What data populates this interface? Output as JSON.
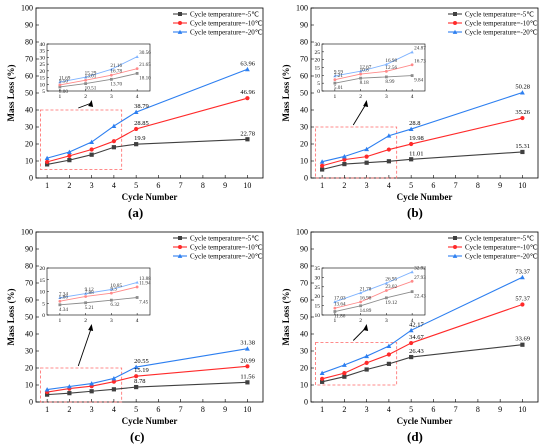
{
  "series_names": [
    "Cycle temperature=-5℃",
    "Cycle temperature=-10℃",
    "Cycle temperature=-20℃"
  ],
  "colors": {
    "s5": "#404040",
    "s10": "#ff2a2a",
    "s20": "#2d7ff0",
    "inset_s5": "#8c8c8c",
    "inset_s10": "#ff8a8a",
    "inset_s20": "#7fb3ff",
    "box": "#ff6666"
  },
  "chart_data": [
    {
      "panel_label": "(a)",
      "type": "line",
      "xlabel": "Cycle Number",
      "ylabel": "Mass Loss (%)",
      "x": [
        1,
        2,
        3,
        4,
        5,
        10
      ],
      "xticks": [
        1,
        2,
        3,
        4,
        5,
        6,
        7,
        8,
        9,
        10
      ],
      "ylim": [
        0,
        100
      ],
      "yticks": [
        0,
        10,
        20,
        30,
        40,
        50,
        60,
        70,
        80,
        90,
        100
      ],
      "series": [
        {
          "name": "Cycle temperature=-5℃",
          "values": [
            8.0,
            10.51,
            13.7,
            18.1,
            19.9,
            22.78
          ]
        },
        {
          "name": "Cycle temperature=-10℃",
          "values": [
            9.5,
            13.01,
            16.78,
            21.65,
            28.85,
            46.96
          ]
        },
        {
          "name": "Cycle temperature=-20℃",
          "values": [
            11.69,
            15.29,
            21.16,
            30.56,
            38.79,
            63.96
          ]
        }
      ],
      "labels": [
        {
          "x": 5,
          "y": 19.9,
          "text": "19.9",
          "s": 0
        },
        {
          "x": 10,
          "y": 22.78,
          "text": "22.78",
          "s": 0
        },
        {
          "x": 5,
          "y": 28.85,
          "text": "28.85",
          "s": 1
        },
        {
          "x": 10,
          "y": 46.96,
          "text": "46.96",
          "s": 1
        },
        {
          "x": 5,
          "y": 38.79,
          "text": "38.79",
          "s": 2
        },
        {
          "x": 10,
          "y": 63.96,
          "text": "63.96",
          "s": 2
        }
      ],
      "inset": {
        "ylim": [
          5,
          40
        ],
        "yticks": [
          5,
          10,
          15,
          20,
          25,
          30,
          35,
          40
        ],
        "labels": [
          {
            "x": 1,
            "y": 8.0,
            "text": "8.00",
            "s": 0
          },
          {
            "x": 2,
            "y": 10.51,
            "text": "10.51",
            "s": 0
          },
          {
            "x": 3,
            "y": 13.7,
            "text": "13.70",
            "s": 0
          },
          {
            "x": 4,
            "y": 18.1,
            "text": "18.10",
            "s": 0
          },
          {
            "x": 1,
            "y": 9.5,
            "text": "9.50",
            "s": 1
          },
          {
            "x": 2,
            "y": 13.01,
            "text": "13.01",
            "s": 1
          },
          {
            "x": 3,
            "y": 16.78,
            "text": "16.78",
            "s": 1
          },
          {
            "x": 4,
            "y": 21.65,
            "text": "21.65",
            "s": 1
          },
          {
            "x": 1,
            "y": 11.69,
            "text": "11.69",
            "s": 2
          },
          {
            "x": 2,
            "y": 15.29,
            "text": "15.29",
            "s": 2
          },
          {
            "x": 3,
            "y": 21.16,
            "text": "21.16",
            "s": 2
          },
          {
            "x": 4,
            "y": 30.56,
            "text": "30.56",
            "s": 2
          }
        ]
      }
    },
    {
      "panel_label": "(b)",
      "type": "line",
      "xlabel": "Cycle Number",
      "ylabel": "Mass Loss (%)",
      "x": [
        1,
        2,
        3,
        4,
        5,
        10
      ],
      "xticks": [
        1,
        2,
        3,
        4,
        5,
        6,
        7,
        8,
        9,
        10
      ],
      "ylim": [
        0,
        100
      ],
      "yticks": [
        0,
        10,
        20,
        30,
        40,
        50,
        60,
        70,
        80,
        90,
        100
      ],
      "series": [
        {
          "name": "Cycle temperature=-5℃",
          "values": [
            5.01,
            8.18,
            8.99,
            9.84,
            11.01,
            15.31
          ]
        },
        {
          "name": "Cycle temperature=-10℃",
          "values": [
            7.21,
            10.8,
            12.56,
            16.73,
            19.98,
            35.26
          ]
        },
        {
          "name": "Cycle temperature=-20℃",
          "values": [
            9.59,
            12.67,
            16.98,
            24.87,
            28.8,
            50.28
          ]
        }
      ],
      "labels": [
        {
          "x": 5,
          "y": 11.01,
          "text": "11.01",
          "s": 0
        },
        {
          "x": 10,
          "y": 15.31,
          "text": "15.31",
          "s": 0
        },
        {
          "x": 5,
          "y": 19.98,
          "text": "19.98",
          "s": 1
        },
        {
          "x": 10,
          "y": 35.26,
          "text": "35.26",
          "s": 1
        },
        {
          "x": 5,
          "y": 28.8,
          "text": "28.8",
          "s": 2
        },
        {
          "x": 10,
          "y": 50.28,
          "text": "50.28",
          "s": 2
        }
      ],
      "inset": {
        "ylim": [
          0,
          30
        ],
        "yticks": [
          0,
          5,
          10,
          15,
          20,
          25,
          30
        ],
        "labels": [
          {
            "x": 1,
            "y": 5.01,
            "text": "5.01",
            "s": 0
          },
          {
            "x": 2,
            "y": 8.18,
            "text": "8.18",
            "s": 0
          },
          {
            "x": 3,
            "y": 8.99,
            "text": "8.99",
            "s": 0
          },
          {
            "x": 4,
            "y": 9.84,
            "text": "9.84",
            "s": 0
          },
          {
            "x": 1,
            "y": 7.21,
            "text": "7.21",
            "s": 1
          },
          {
            "x": 2,
            "y": 10.8,
            "text": "10.8",
            "s": 1
          },
          {
            "x": 3,
            "y": 12.56,
            "text": "12.56",
            "s": 1
          },
          {
            "x": 4,
            "y": 16.73,
            "text": "16.73",
            "s": 1
          },
          {
            "x": 1,
            "y": 9.59,
            "text": "9.59",
            "s": 2
          },
          {
            "x": 2,
            "y": 12.67,
            "text": "12.67",
            "s": 2
          },
          {
            "x": 3,
            "y": 16.98,
            "text": "16.98",
            "s": 2
          },
          {
            "x": 4,
            "y": 24.87,
            "text": "24.87",
            "s": 2
          }
        ]
      }
    },
    {
      "panel_label": "(c)",
      "type": "line",
      "xlabel": "Cycle Number",
      "ylabel": "Mass Loss (%)",
      "x": [
        1,
        2,
        3,
        4,
        5,
        10
      ],
      "xticks": [
        1,
        2,
        3,
        4,
        5,
        6,
        7,
        8,
        9,
        10
      ],
      "ylim": [
        0,
        100
      ],
      "yticks": [
        0,
        10,
        20,
        30,
        40,
        50,
        60,
        70,
        80,
        90,
        100
      ],
      "series": [
        {
          "name": "Cycle temperature=-5℃",
          "values": [
            4.34,
            5.21,
            6.32,
            7.45,
            8.78,
            11.56
          ]
        },
        {
          "name": "Cycle temperature=-10℃",
          "values": [
            5.86,
            7.88,
            9.3,
            11.94,
            15.19,
            20.99
          ]
        },
        {
          "name": "Cycle temperature=-20℃",
          "values": [
            7.34,
            9.12,
            10.85,
            13.88,
            20.55,
            31.38
          ]
        }
      ],
      "labels": [
        {
          "x": 5,
          "y": 8.78,
          "text": "8.78",
          "s": 0
        },
        {
          "x": 10,
          "y": 11.56,
          "text": "11.56",
          "s": 0
        },
        {
          "x": 5,
          "y": 15.19,
          "text": "15.19",
          "s": 1
        },
        {
          "x": 10,
          "y": 20.99,
          "text": "20.99",
          "s": 1
        },
        {
          "x": 5,
          "y": 20.55,
          "text": "20.55",
          "s": 2
        },
        {
          "x": 10,
          "y": 31.38,
          "text": "31.38",
          "s": 2
        }
      ],
      "inset": {
        "ylim": [
          0,
          20
        ],
        "yticks": [
          0,
          5,
          10,
          15,
          20
        ],
        "labels": [
          {
            "x": 1,
            "y": 4.34,
            "text": "4.34",
            "s": 0
          },
          {
            "x": 2,
            "y": 5.21,
            "text": "5.21",
            "s": 0
          },
          {
            "x": 3,
            "y": 6.32,
            "text": "6.32",
            "s": 0
          },
          {
            "x": 4,
            "y": 7.45,
            "text": "7.45",
            "s": 0
          },
          {
            "x": 1,
            "y": 5.86,
            "text": "5.86",
            "s": 1
          },
          {
            "x": 2,
            "y": 7.88,
            "text": "7.88",
            "s": 1
          },
          {
            "x": 3,
            "y": 9.3,
            "text": "9.3",
            "s": 1
          },
          {
            "x": 4,
            "y": 11.94,
            "text": "11.94",
            "s": 1
          },
          {
            "x": 1,
            "y": 7.34,
            "text": "7.34",
            "s": 2
          },
          {
            "x": 2,
            "y": 9.12,
            "text": "9.12",
            "s": 2
          },
          {
            "x": 3,
            "y": 10.85,
            "text": "10.85",
            "s": 2
          },
          {
            "x": 4,
            "y": 13.88,
            "text": "13.88",
            "s": 2
          }
        ]
      }
    },
    {
      "panel_label": "(d)",
      "type": "line",
      "xlabel": "Cycle Number",
      "ylabel": "Mass Loss (%)",
      "x": [
        1,
        2,
        3,
        4,
        5,
        10
      ],
      "xticks": [
        1,
        2,
        3,
        4,
        5,
        6,
        7,
        8,
        9,
        10
      ],
      "ylim": [
        0,
        100
      ],
      "yticks": [
        0,
        10,
        20,
        30,
        40,
        50,
        60,
        70,
        80,
        90,
        100
      ],
      "series": [
        {
          "name": "Cycle temperature=-5℃",
          "values": [
            11.86,
            14.89,
            19.12,
            22.43,
            26.43,
            33.69
          ]
        },
        {
          "name": "Cycle temperature=-10℃",
          "values": [
            13.64,
            16.98,
            23.02,
            27.93,
            34.67,
            57.37
          ]
        },
        {
          "name": "Cycle temperature=-20℃",
          "values": [
            17.03,
            21.78,
            26.95,
            32.92,
            42.17,
            73.37
          ]
        }
      ],
      "labels": [
        {
          "x": 5,
          "y": 26.43,
          "text": "26.43",
          "s": 0
        },
        {
          "x": 10,
          "y": 33.69,
          "text": "33.69",
          "s": 0
        },
        {
          "x": 5,
          "y": 34.67,
          "text": "34.67",
          "s": 1
        },
        {
          "x": 10,
          "y": 57.37,
          "text": "57.37",
          "s": 1
        },
        {
          "x": 5,
          "y": 42.17,
          "text": "42.17",
          "s": 2
        },
        {
          "x": 10,
          "y": 73.37,
          "text": "73.37",
          "s": 2
        }
      ],
      "inset": {
        "ylim": [
          10,
          35
        ],
        "yticks": [
          10,
          15,
          20,
          25,
          30,
          35
        ],
        "labels": [
          {
            "x": 1,
            "y": 11.86,
            "text": "11.86",
            "s": 0
          },
          {
            "x": 2,
            "y": 14.89,
            "text": "14.89",
            "s": 0
          },
          {
            "x": 3,
            "y": 19.12,
            "text": "19.12",
            "s": 0
          },
          {
            "x": 4,
            "y": 22.43,
            "text": "22.43",
            "s": 0
          },
          {
            "x": 1,
            "y": 13.64,
            "text": "13.64",
            "s": 1
          },
          {
            "x": 2,
            "y": 16.98,
            "text": "16.98",
            "s": 1
          },
          {
            "x": 3,
            "y": 23.02,
            "text": "23.02",
            "s": 1
          },
          {
            "x": 4,
            "y": 27.93,
            "text": "27.93",
            "s": 1
          },
          {
            "x": 1,
            "y": 17.03,
            "text": "17.03",
            "s": 2
          },
          {
            "x": 2,
            "y": 21.78,
            "text": "21.78",
            "s": 2
          },
          {
            "x": 3,
            "y": 26.95,
            "text": "26.95",
            "s": 2
          },
          {
            "x": 4,
            "y": 32.92,
            "text": "32.92",
            "s": 2
          }
        ]
      }
    }
  ]
}
